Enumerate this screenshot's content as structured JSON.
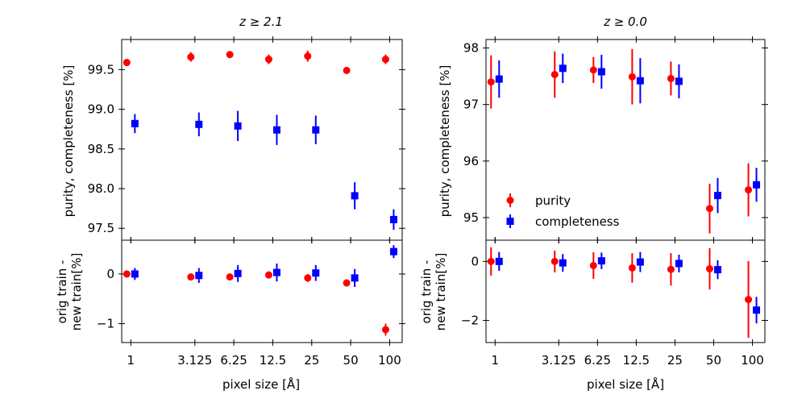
{
  "chart_data": [
    {
      "type": "scatter",
      "title": "z ≥ 2.1",
      "xlabel": "pixel size [Å]",
      "x_scale": "log",
      "xlim": [
        0.85,
        125
      ],
      "categories": [
        "1",
        "3.125",
        "6.25",
        "12.5",
        "25",
        "50",
        "100"
      ],
      "x": [
        1,
        3.125,
        6.25,
        12.5,
        25,
        50,
        100
      ],
      "top": {
        "ylabel": "purity, completeness [%]",
        "ylim": [
          97.35,
          99.88
        ],
        "yticks": [
          97.5,
          98.0,
          98.5,
          99.0,
          99.5
        ],
        "ytick_labels": [
          "97.5",
          "98.0",
          "98.5",
          "99.0",
          "99.5"
        ],
        "series": [
          {
            "name": "purity",
            "color": "#ff0000",
            "marker": "circle",
            "values": [
              99.59,
              99.66,
              99.69,
              99.63,
              99.67,
              99.49,
              99.63
            ],
            "errors": [
              0.04,
              0.06,
              0.04,
              0.06,
              0.07,
              0.02,
              0.06
            ]
          },
          {
            "name": "completeness",
            "color": "#0000ff",
            "marker": "square",
            "values": [
              98.82,
              98.81,
              98.79,
              98.74,
              98.74,
              97.91,
              97.61
            ],
            "errors": [
              0.12,
              0.15,
              0.19,
              0.19,
              0.18,
              0.17,
              0.13
            ]
          }
        ]
      },
      "bottom": {
        "ylabel_line1": "orig train -",
        "ylabel_line2": "new train[%]",
        "ylim": [
          -1.38,
          0.68
        ],
        "yticks": [
          -1,
          0
        ],
        "ytick_labels": [
          "−1",
          "0"
        ],
        "series": [
          {
            "name": "purity",
            "color": "#ff0000",
            "marker": "circle",
            "values": [
              0.0,
              -0.06,
              -0.06,
              -0.02,
              -0.08,
              -0.18,
              -1.12
            ],
            "errors": [
              0.05,
              0.07,
              0.06,
              0.07,
              0.08,
              0.05,
              0.12
            ]
          },
          {
            "name": "completeness",
            "color": "#0000ff",
            "marker": "square",
            "values": [
              0.0,
              -0.03,
              0.01,
              0.03,
              0.02,
              -0.08,
              0.45
            ],
            "errors": [
              0.12,
              0.15,
              0.17,
              0.18,
              0.16,
              0.18,
              0.13
            ]
          }
        ]
      }
    },
    {
      "type": "scatter",
      "title": "z ≥ 0.0",
      "xlabel": "pixel size [Å]",
      "x_scale": "log",
      "xlim": [
        0.85,
        125
      ],
      "categories": [
        "1",
        "3.125",
        "6.25",
        "12.5",
        "25",
        "50",
        "100"
      ],
      "x": [
        1,
        3.125,
        6.25,
        12.5,
        25,
        50,
        100
      ],
      "legend": {
        "position": "center-left",
        "entries": [
          "purity",
          "completeness"
        ]
      },
      "top": {
        "ylabel": "purity, completeness [%]",
        "ylim": [
          94.6,
          98.15
        ],
        "yticks": [
          95,
          96,
          97,
          98
        ],
        "ytick_labels": [
          "95",
          "96",
          "97",
          "98"
        ],
        "series": [
          {
            "name": "purity",
            "color": "#ff0000",
            "marker": "circle",
            "values": [
              97.4,
              97.53,
              97.61,
              97.49,
              97.46,
              95.16,
              95.49
            ],
            "errors": [
              0.47,
              0.41,
              0.23,
              0.49,
              0.3,
              0.44,
              0.47
            ]
          },
          {
            "name": "completeness",
            "color": "#0000ff",
            "marker": "square",
            "values": [
              97.45,
              97.64,
              97.58,
              97.42,
              97.41,
              95.39,
              95.58
            ],
            "errors": [
              0.33,
              0.26,
              0.3,
              0.4,
              0.3,
              0.31,
              0.3
            ]
          }
        ]
      },
      "bottom": {
        "ylabel_line1": "orig train -",
        "ylabel_line2": "new train[%]",
        "ylim": [
          -2.75,
          0.72
        ],
        "yticks": [
          -2,
          0
        ],
        "ytick_labels": [
          "−2",
          "0"
        ],
        "series": [
          {
            "name": "purity",
            "color": "#ff0000",
            "marker": "circle",
            "values": [
              0.0,
              0.0,
              -0.14,
              -0.22,
              -0.27,
              -0.25,
              -1.29
            ],
            "errors": [
              0.48,
              0.37,
              0.45,
              0.5,
              0.55,
              0.7,
              1.3
            ]
          },
          {
            "name": "completeness",
            "color": "#0000ff",
            "marker": "square",
            "values": [
              0.0,
              -0.05,
              0.02,
              -0.02,
              -0.07,
              -0.28,
              -1.65
            ],
            "errors": [
              0.32,
              0.3,
              0.28,
              0.34,
              0.3,
              0.32,
              0.45
            ]
          }
        ]
      }
    }
  ]
}
